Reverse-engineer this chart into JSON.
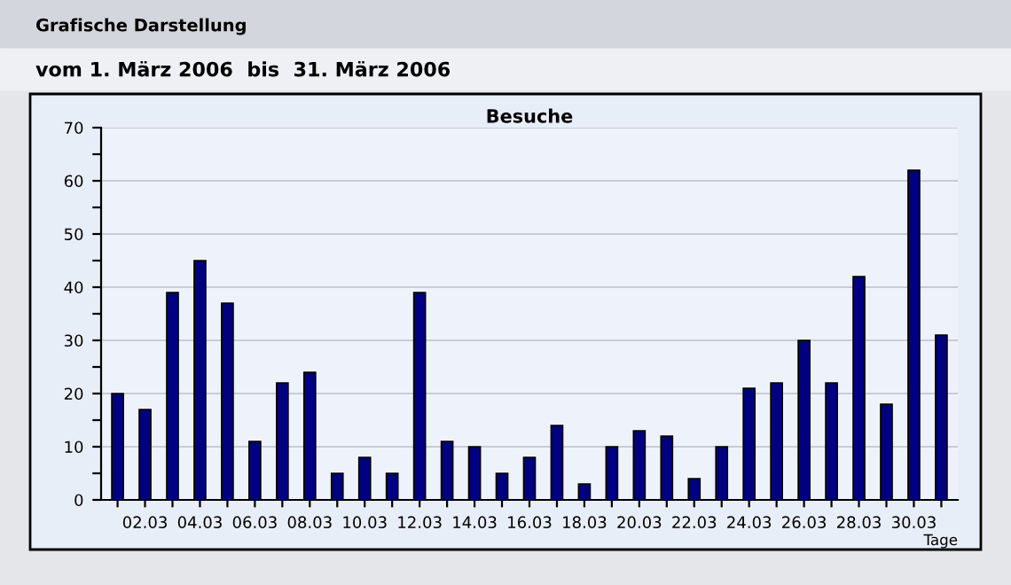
{
  "chart_data": {
    "type": "bar",
    "title": "Besuche",
    "subtitle": "vom 1. März 2006  bis  31. März 2006",
    "xlabel": "Tage",
    "annotations": [
      "Grafische Darstellung"
    ],
    "categories": [
      null,
      "02.03",
      null,
      "04.03",
      null,
      "06.03",
      null,
      "08.03",
      null,
      "10.03",
      null,
      "12.03",
      null,
      "14.03",
      null,
      "16.03",
      null,
      "18.03",
      null,
      "20.03",
      null,
      "22.03",
      null,
      "24.03",
      null,
      "26.03",
      null,
      "28.03",
      null,
      "30.03",
      null
    ],
    "series": [
      {
        "color": "#000080",
        "values": [
          20,
          17,
          39,
          45,
          37,
          11,
          22,
          24,
          5,
          8,
          5,
          39,
          11,
          10,
          5,
          8,
          14,
          3,
          10,
          13,
          12,
          4,
          10,
          21,
          22,
          30,
          22,
          42,
          18,
          62,
          31
        ]
      }
    ],
    "ylim": [
      0,
      70
    ],
    "yticks": [
      0,
      {
        "value": 5,
        "label": null
      },
      10,
      {
        "value": 15,
        "label": null
      },
      20,
      {
        "value": 25,
        "label": null
      },
      30,
      {
        "value": 35,
        "label": null
      },
      40,
      {
        "value": 45,
        "label": null
      },
      50,
      {
        "value": 55,
        "label": null
      },
      60,
      {
        "value": 65,
        "label": null
      },
      70
    ],
    "grid": "y",
    "legend": false
  }
}
